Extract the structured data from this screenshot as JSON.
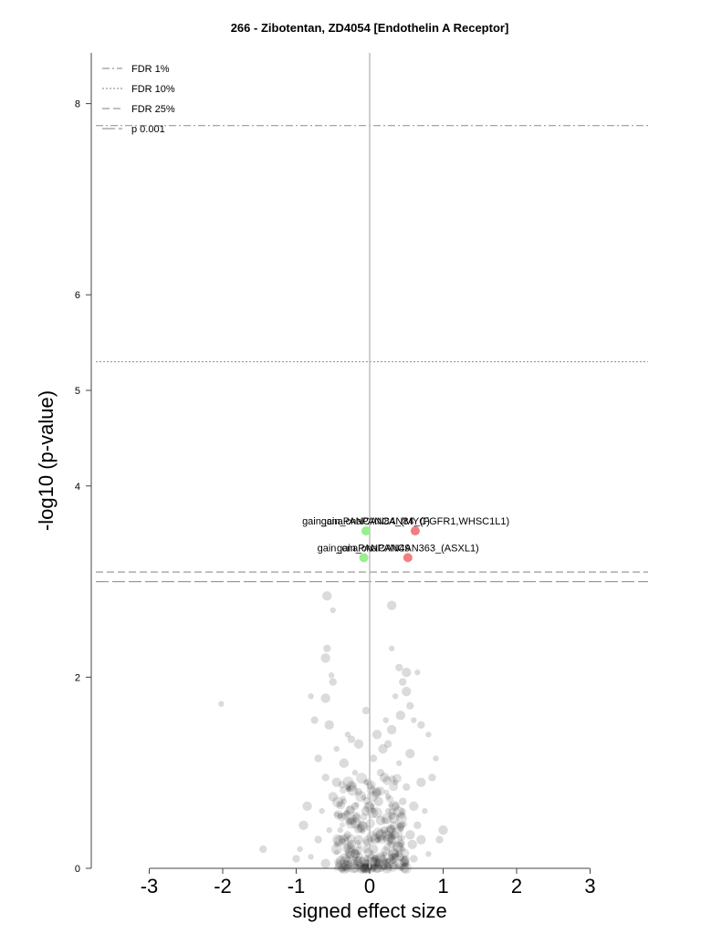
{
  "chart_data": {
    "type": "scatter",
    "title": "266 - Zibotentan, ZD4054 [Endothelin A Receptor]",
    "xlabel": "signed effect size",
    "ylabel": "-log10 (p-value)",
    "xlim": [
      -3,
      3
    ],
    "ylim": [
      0,
      8
    ],
    "xticks": [
      "-3",
      "-2",
      "-1",
      "0",
      "1",
      "2",
      "3"
    ],
    "yticks": [
      "0",
      "2",
      "4",
      "5",
      "6",
      "8"
    ],
    "grid": false,
    "legend_position": "top-left",
    "thresholds": [
      {
        "name": "FDR 1%",
        "y": 7.77,
        "style": "dashdot"
      },
      {
        "name": "FDR 10%",
        "y": 5.3,
        "style": "dotted"
      },
      {
        "name": "FDR 25%",
        "y": 3.1,
        "style": "dashed"
      },
      {
        "name": "p 0.001",
        "y": 3.0,
        "style": "longdash"
      }
    ],
    "hits": [
      {
        "label": "gain_cnaPANCAN84_(FGFR1,WHSC1L1)",
        "x": 0.62,
        "y": 3.53,
        "color": "#f08080"
      },
      {
        "label": "gain_cnaPANCAN84_(MYC)",
        "x": -0.05,
        "y": 3.53,
        "color": "#98ee90"
      },
      {
        "label": "gain_cnaPANCAN363_(ASXL1)",
        "x": 0.52,
        "y": 3.25,
        "color": "#f08080"
      },
      {
        "label": "gain_cnaPANCAN49",
        "x": -0.08,
        "y": 3.25,
        "color": "#98ee90"
      }
    ],
    "background_points": [
      [
        -2.02,
        1.72
      ],
      [
        -1.45,
        0.2
      ],
      [
        -0.58,
        2.85
      ],
      [
        -0.5,
        2.7
      ],
      [
        -0.58,
        2.3
      ],
      [
        -0.6,
        2.2
      ],
      [
        -0.52,
        2.02
      ],
      [
        -0.5,
        1.95
      ],
      [
        -0.6,
        1.78
      ],
      [
        -0.8,
        1.8
      ],
      [
        -0.75,
        1.55
      ],
      [
        -0.55,
        1.5
      ],
      [
        -0.3,
        1.4
      ],
      [
        -0.25,
        1.35
      ],
      [
        -0.15,
        1.3
      ],
      [
        -0.45,
        1.25
      ],
      [
        -0.7,
        1.15
      ],
      [
        -0.35,
        1.1
      ],
      [
        -0.2,
        1.0
      ],
      [
        -0.6,
        0.95
      ],
      [
        -0.45,
        0.9
      ],
      [
        -0.3,
        0.85
      ],
      [
        -0.15,
        0.8
      ],
      [
        -0.5,
        0.75
      ],
      [
        -0.35,
        0.7
      ],
      [
        -0.2,
        0.65
      ],
      [
        -0.05,
        0.6
      ],
      [
        -0.4,
        0.55
      ],
      [
        -0.25,
        0.5
      ],
      [
        -0.1,
        0.45
      ],
      [
        -0.55,
        0.4
      ],
      [
        -0.3,
        0.35
      ],
      [
        -0.15,
        0.3
      ],
      [
        -0.45,
        0.25
      ],
      [
        -0.05,
        0.2
      ],
      [
        -0.2,
        0.15
      ],
      [
        -0.35,
        0.1
      ],
      [
        -0.1,
        0.08
      ],
      [
        -0.6,
        0.05
      ],
      [
        -0.8,
        0.12
      ],
      [
        -0.7,
        0.3
      ],
      [
        -0.9,
        0.45
      ],
      [
        -0.65,
        0.6
      ],
      [
        -0.05,
        1.65
      ],
      [
        0.3,
        2.75
      ],
      [
        0.3,
        2.3
      ],
      [
        0.4,
        2.1
      ],
      [
        0.5,
        2.05
      ],
      [
        0.65,
        2.05
      ],
      [
        0.45,
        1.95
      ],
      [
        0.5,
        1.85
      ],
      [
        0.35,
        1.8
      ],
      [
        0.55,
        1.7
      ],
      [
        0.42,
        1.6
      ],
      [
        0.6,
        1.55
      ],
      [
        0.7,
        1.5
      ],
      [
        0.3,
        1.45
      ],
      [
        0.8,
        1.4
      ],
      [
        0.25,
        1.3
      ],
      [
        0.55,
        1.2
      ],
      [
        0.4,
        1.1
      ],
      [
        0.15,
        1.0
      ],
      [
        0.2,
        0.95
      ],
      [
        0.35,
        0.9
      ],
      [
        0.5,
        0.85
      ],
      [
        0.1,
        0.8
      ],
      [
        0.25,
        0.75
      ],
      [
        0.45,
        0.7
      ],
      [
        0.6,
        0.65
      ],
      [
        0.05,
        0.6
      ],
      [
        0.3,
        0.55
      ],
      [
        0.15,
        0.5
      ],
      [
        0.4,
        0.45
      ],
      [
        0.2,
        0.4
      ],
      [
        0.55,
        0.35
      ],
      [
        0.1,
        0.3
      ],
      [
        0.3,
        0.25
      ],
      [
        0.05,
        0.2
      ],
      [
        0.2,
        0.15
      ],
      [
        0.35,
        0.12
      ],
      [
        0.15,
        0.1
      ],
      [
        0.25,
        0.08
      ],
      [
        0.1,
        0.05
      ],
      [
        0.4,
        0.05
      ],
      [
        0.0,
        0.02
      ],
      [
        0.2,
        0.02
      ],
      [
        0.3,
        0.3
      ],
      [
        0.25,
        0.6
      ],
      [
        0.35,
        0.65
      ],
      [
        0.18,
        1.25
      ],
      [
        0.9,
        1.15
      ],
      [
        0.85,
        0.95
      ],
      [
        0.7,
        0.9
      ],
      [
        0.75,
        0.6
      ],
      [
        0.65,
        0.45
      ],
      [
        0.58,
        0.25
      ],
      [
        0.8,
        0.15
      ],
      [
        0.95,
        0.3
      ],
      [
        1.0,
        0.4
      ],
      [
        -0.95,
        0.2
      ],
      [
        -1.0,
        0.1
      ],
      [
        -0.85,
        0.65
      ],
      [
        -0.05,
        0.9
      ],
      [
        0.05,
        1.15
      ],
      [
        0.1,
        1.4
      ],
      [
        0.22,
        1.55
      ],
      [
        -0.18,
        0.55
      ],
      [
        0.12,
        0.7
      ],
      [
        0.45,
        0.2
      ],
      [
        0.28,
        0.4
      ],
      [
        -0.25,
        0.25
      ],
      [
        -0.4,
        0.4
      ],
      [
        0.6,
        0.1
      ],
      [
        0.7,
        0.3
      ]
    ]
  }
}
